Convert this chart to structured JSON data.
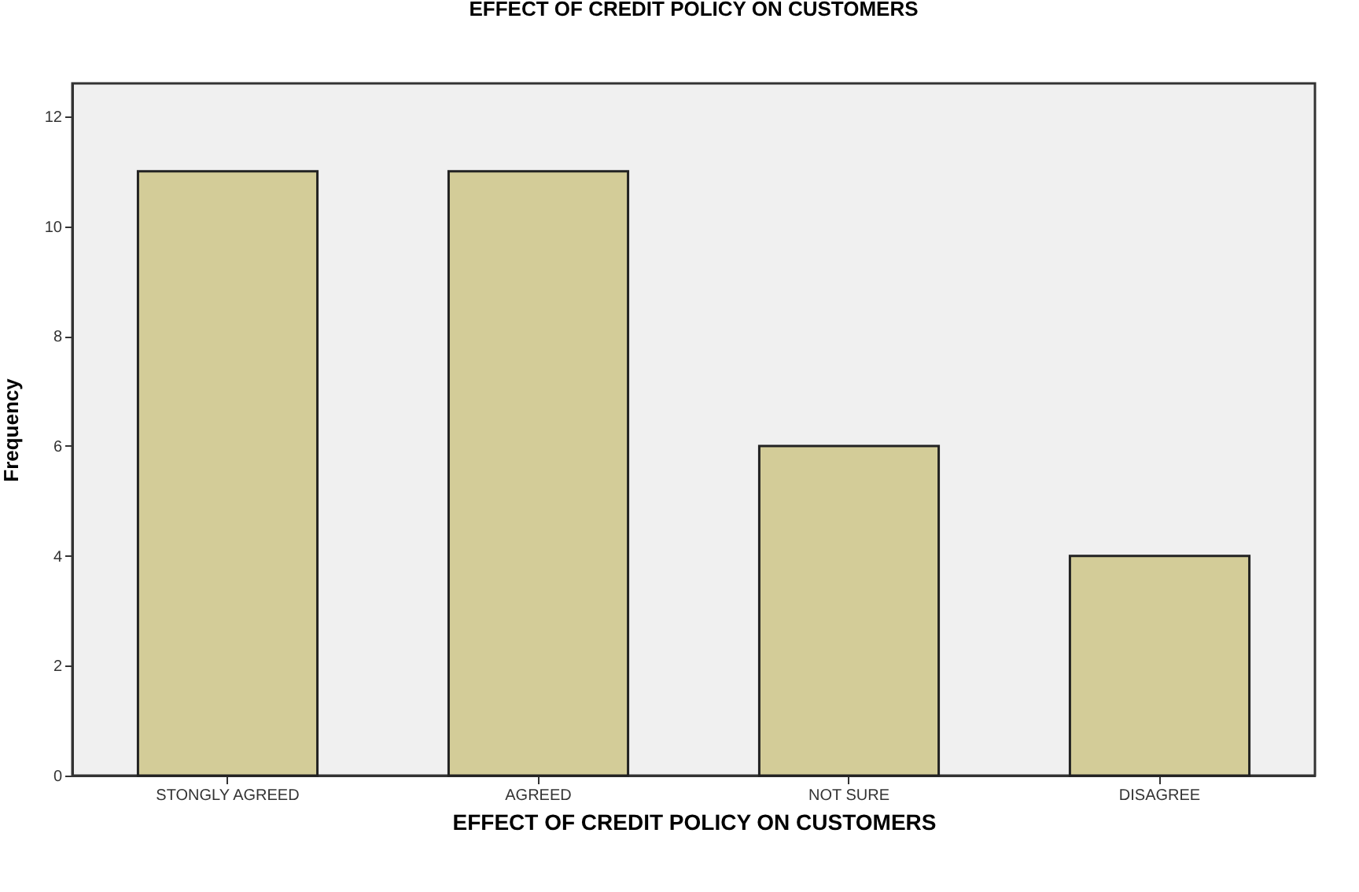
{
  "chart_data": {
    "type": "bar",
    "title": "EFFECT OF CREDIT POLICY ON  CUSTOMERS",
    "xlabel": "EFFECT OF CREDIT POLICY ON  CUSTOMERS",
    "ylabel": "Frequency",
    "categories": [
      "STONGLY AGREED",
      "AGREED",
      "NOT SURE",
      "DISAGREE"
    ],
    "values": [
      11,
      11,
      6,
      4
    ],
    "color": "#d3cc98",
    "ylim": [
      0,
      12.6
    ],
    "yticks": [
      0,
      2,
      4,
      6,
      8,
      10,
      12
    ],
    "grid": false
  }
}
